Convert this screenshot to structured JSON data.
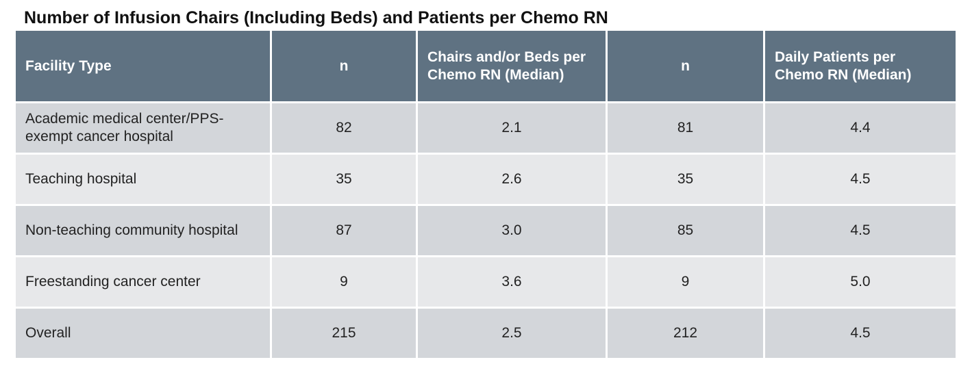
{
  "title": "Number of Infusion Chairs (Including Beds) and Patients per Chemo RN",
  "table": {
    "header": [
      "Facility Type",
      "n",
      "Chairs and/or Beds per Chemo RN (Median)",
      "n",
      "Daily Patients per Chemo RN (Median)"
    ],
    "rows": [
      [
        "Academic medical center/PPS-exempt cancer hospital",
        "82",
        "2.1",
        "81",
        "4.4"
      ],
      [
        "Teaching hospital",
        "35",
        "2.6",
        "35",
        "4.5"
      ],
      [
        "Non-teaching community hospital",
        "87",
        "3.0",
        "85",
        "4.5"
      ],
      [
        "Freestanding cancer center",
        "9",
        "3.6",
        "9",
        "5.0"
      ],
      [
        "Overall",
        "215",
        "2.5",
        "212",
        "4.5"
      ]
    ]
  }
}
